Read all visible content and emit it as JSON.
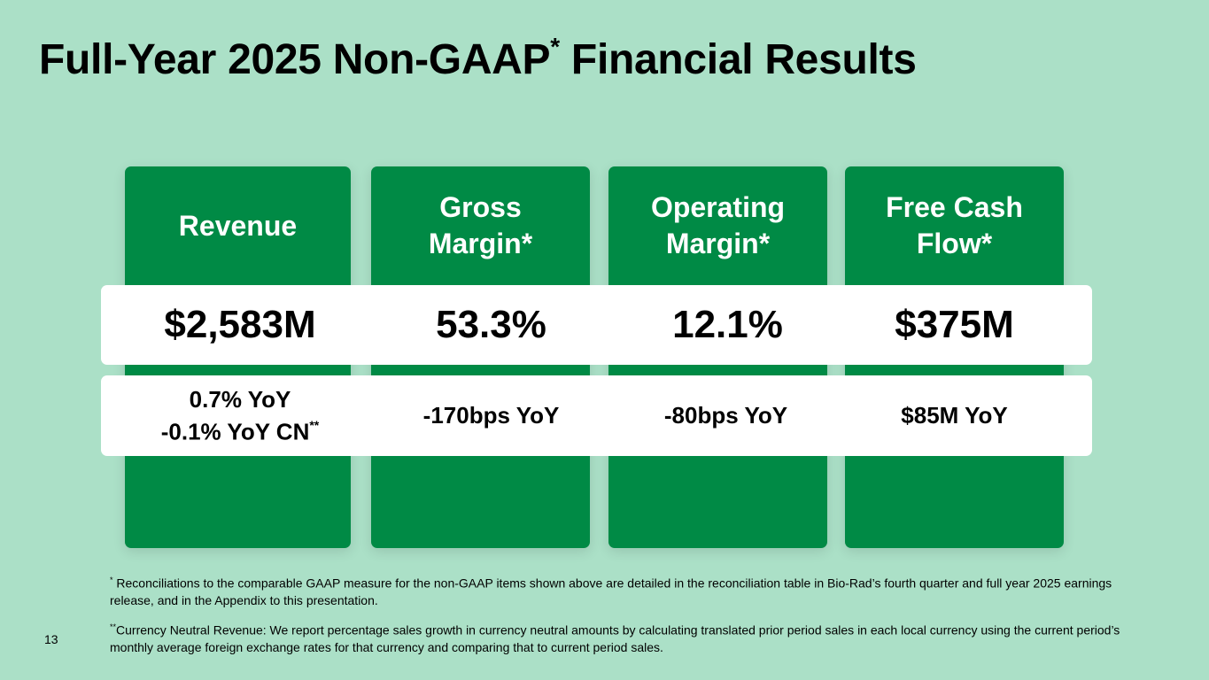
{
  "slide": {
    "title_main": "Full-Year 2025 Non-GAAP",
    "title_mark": "*",
    "title_tail": "Financial Results",
    "page_number": "13"
  },
  "metrics": [
    {
      "label_line1": "Revenue",
      "label_line2": "",
      "value": "$2,583M",
      "change_line1": "0.7% YoY",
      "change_line2": "-0.1% YoY CN",
      "change_mark": "**"
    },
    {
      "label_line1": "Gross",
      "label_line2": "Margin*",
      "value": "53.3%",
      "change_line1": "-170bps YoY"
    },
    {
      "label_line1": "Operating",
      "label_line2": "Margin*",
      "value": "12.1%",
      "change_line1": "-80bps YoY"
    },
    {
      "label_line1": "Free Cash",
      "label_line2": "Flow*",
      "value": "$375M",
      "change_line1": "$85M YoY"
    }
  ],
  "footnotes": {
    "note1_mark": "*",
    "note1_text": "Reconciliations to the comparable GAAP measure for the non-GAAP items shown above are detailed in the reconciliation table in Bio-Rad’s fourth quarter and full year 2025 earnings release, and in the Appendix to this presentation.",
    "note2_mark": "**",
    "note2_text": "Currency Neutral Revenue: We report percentage sales growth in currency neutral amounts by calculating translated prior period sales in each local currency using the current period’s monthly average foreign exchange rates for that currency and comparing that to current period sales."
  },
  "colors": {
    "background": "#abe0c7",
    "card": "#008a45",
    "band": "#ffffff"
  }
}
